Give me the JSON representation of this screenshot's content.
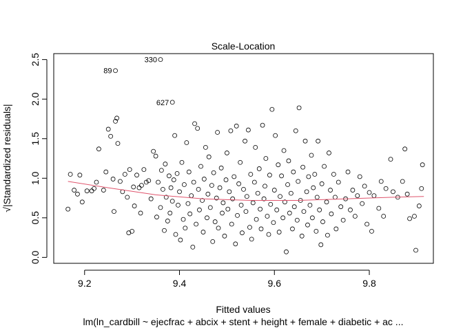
{
  "chart_data": {
    "type": "scatter",
    "title": "Scale-Location",
    "xlabel": "Fitted values",
    "ylabel": "√|Standardized residuals|",
    "subtitle": "lm(ln_cardbill ~ ejecfrac + abcix + stent + height + female + diabetic + ac ...",
    "xlim": [
      9.135,
      9.935
    ],
    "ylim": [
      -0.075,
      2.575
    ],
    "x_ticks": [
      9.2,
      9.4,
      9.6,
      9.8
    ],
    "y_ticks": [
      0.0,
      0.5,
      1.0,
      1.5,
      2.0,
      2.5
    ],
    "x_tick_labels": [
      "9.2",
      "9.4",
      "9.6",
      "9.8"
    ],
    "y_tick_labels": [
      "0.0",
      "0.5",
      "1.0",
      "1.5",
      "2.0",
      "2.5"
    ],
    "grid": false,
    "smoother_color": "#DF536B",
    "labeled_points": [
      {
        "label": "330",
        "x": 9.36,
        "y": 2.5
      },
      {
        "label": "89",
        "x": 9.265,
        "y": 2.36
      },
      {
        "label": "627",
        "x": 9.385,
        "y": 1.96
      }
    ],
    "smoother": {
      "x": [
        9.165,
        9.25,
        9.35,
        9.45,
        9.55,
        9.65,
        9.75,
        9.85,
        9.915
      ],
      "y": [
        0.96,
        0.88,
        0.79,
        0.74,
        0.72,
        0.72,
        0.74,
        0.76,
        0.77
      ]
    },
    "points": [
      [
        9.165,
        0.61
      ],
      [
        9.17,
        1.05
      ],
      [
        9.178,
        0.85
      ],
      [
        9.185,
        0.8
      ],
      [
        9.19,
        1.04
      ],
      [
        9.195,
        0.7
      ],
      [
        9.205,
        0.84
      ],
      [
        9.215,
        0.84
      ],
      [
        9.22,
        0.87
      ],
      [
        9.225,
        0.95
      ],
      [
        9.23,
        1.37
      ],
      [
        9.24,
        0.85
      ],
      [
        9.245,
        1.08
      ],
      [
        9.25,
        1.62
      ],
      [
        9.255,
        1.53
      ],
      [
        9.26,
        0.99
      ],
      [
        9.262,
        0.58
      ],
      [
        9.265,
        1.72
      ],
      [
        9.268,
        1.76
      ],
      [
        9.27,
        1.44
      ],
      [
        9.275,
        0.96
      ],
      [
        9.28,
        0.83
      ],
      [
        9.285,
        1.05
      ],
      [
        9.29,
        0.76
      ],
      [
        9.293,
        0.31
      ],
      [
        9.295,
        1.11
      ],
      [
        9.3,
        0.33
      ],
      [
        9.303,
        0.89
      ],
      [
        9.305,
        0.65
      ],
      [
        9.31,
        1.04
      ],
      [
        9.315,
        0.88
      ],
      [
        9.318,
        0.56
      ],
      [
        9.32,
        0.91
      ],
      [
        9.325,
        1.11
      ],
      [
        9.33,
        0.95
      ],
      [
        9.335,
        0.97
      ],
      [
        9.34,
        0.74
      ],
      [
        9.345,
        1.34
      ],
      [
        9.35,
        1.28
      ],
      [
        9.352,
        0.51
      ],
      [
        9.355,
        0.95
      ],
      [
        9.36,
        0.63
      ],
      [
        9.362,
        1.1
      ],
      [
        9.365,
        0.86
      ],
      [
        9.368,
        0.34
      ],
      [
        9.37,
        1.18
      ],
      [
        9.372,
        0.76
      ],
      [
        9.375,
        0.46
      ],
      [
        9.378,
        1.03
      ],
      [
        9.38,
        0.56
      ],
      [
        9.382,
        0.88
      ],
      [
        9.385,
        0.71
      ],
      [
        9.388,
        0.98
      ],
      [
        9.39,
        1.54
      ],
      [
        9.392,
        0.29
      ],
      [
        9.395,
        1.06
      ],
      [
        9.397,
        0.66
      ],
      [
        9.4,
        0.83
      ],
      [
        9.402,
        0.22
      ],
      [
        9.405,
        1.2
      ],
      [
        9.408,
        0.48
      ],
      [
        9.41,
        0.92
      ],
      [
        9.412,
        0.37
      ],
      [
        9.415,
        1.45
      ],
      [
        9.418,
        0.68
      ],
      [
        9.42,
        1.08
      ],
      [
        9.422,
        0.55
      ],
      [
        9.425,
        0.78
      ],
      [
        9.428,
        0.13
      ],
      [
        9.43,
        0.95
      ],
      [
        9.432,
        1.69
      ],
      [
        9.435,
        0.42
      ],
      [
        9.438,
        1.63
      ],
      [
        9.44,
        0.86
      ],
      [
        9.442,
        0.6
      ],
      [
        9.445,
        1.15
      ],
      [
        9.448,
        0.72
      ],
      [
        9.45,
        0.32
      ],
      [
        9.452,
        0.99
      ],
      [
        9.455,
        1.39
      ],
      [
        9.458,
        0.5
      ],
      [
        9.46,
        0.8
      ],
      [
        9.462,
        1.27
      ],
      [
        9.465,
        0.63
      ],
      [
        9.468,
        0.91
      ],
      [
        9.47,
        0.2
      ],
      [
        9.472,
        1.07
      ],
      [
        9.475,
        0.45
      ],
      [
        9.478,
        0.75
      ],
      [
        9.48,
        1.58
      ],
      [
        9.482,
        0.37
      ],
      [
        9.485,
        0.88
      ],
      [
        9.488,
        1.13
      ],
      [
        9.49,
        0.56
      ],
      [
        9.492,
        0.69
      ],
      [
        9.495,
        0.27
      ],
      [
        9.498,
        0.98
      ],
      [
        9.5,
        1.32
      ],
      [
        9.502,
        0.61
      ],
      [
        9.505,
        0.83
      ],
      [
        9.508,
        1.6
      ],
      [
        9.51,
        0.42
      ],
      [
        9.512,
        0.74
      ],
      [
        9.515,
        1.02
      ],
      [
        9.518,
        0.17
      ],
      [
        9.52,
        1.66
      ],
      [
        9.522,
        0.53
      ],
      [
        9.525,
        0.93
      ],
      [
        9.528,
        1.2
      ],
      [
        9.53,
        0.66
      ],
      [
        9.532,
        0.31
      ],
      [
        9.535,
        0.86
      ],
      [
        9.538,
        1.47
      ],
      [
        9.54,
        0.58
      ],
      [
        9.542,
        0.77
      ],
      [
        9.545,
        1.61
      ],
      [
        9.548,
        0.38
      ],
      [
        9.55,
        1.05
      ],
      [
        9.552,
        0.23
      ],
      [
        9.555,
        0.69
      ],
      [
        9.558,
        0.95
      ],
      [
        9.56,
        1.39
      ],
      [
        9.562,
        0.48
      ],
      [
        9.565,
        0.81
      ],
      [
        9.568,
        1.12
      ],
      [
        9.57,
        0.61
      ],
      [
        9.572,
        0.36
      ],
      [
        9.575,
        1.67
      ],
      [
        9.578,
        0.74
      ],
      [
        9.58,
        0.9
      ],
      [
        9.582,
        1.25
      ],
      [
        9.585,
        0.52
      ],
      [
        9.588,
        0.29
      ],
      [
        9.59,
        1.04
      ],
      [
        9.592,
        0.67
      ],
      [
        9.595,
        1.87
      ],
      [
        9.598,
        0.44
      ],
      [
        9.6,
        0.85
      ],
      [
        9.602,
        1.54
      ],
      [
        9.605,
        0.6
      ],
      [
        9.608,
        1.17
      ],
      [
        9.61,
        0.32
      ],
      [
        9.612,
        0.77
      ],
      [
        9.615,
        1.03
      ],
      [
        9.618,
        0.5
      ],
      [
        9.62,
        1.35
      ],
      [
        9.622,
        0.7
      ],
      [
        9.625,
        0.07
      ],
      [
        9.628,
        0.92
      ],
      [
        9.63,
        1.22
      ],
      [
        9.632,
        0.56
      ],
      [
        9.635,
        0.81
      ],
      [
        9.638,
        0.36
      ],
      [
        9.64,
        1.08
      ],
      [
        9.642,
        0.64
      ],
      [
        9.645,
        1.6
      ],
      [
        9.648,
        0.47
      ],
      [
        9.65,
        0.96
      ],
      [
        9.652,
        1.89
      ],
      [
        9.655,
        0.72
      ],
      [
        9.658,
        0.27
      ],
      [
        9.66,
        1.14
      ],
      [
        9.662,
        0.58
      ],
      [
        9.665,
        1.47
      ],
      [
        9.668,
        0.83
      ],
      [
        9.67,
        0.41
      ],
      [
        9.672,
        1.02
      ],
      [
        9.675,
        0.66
      ],
      [
        9.678,
        1.29
      ],
      [
        9.68,
        0.5
      ],
      [
        9.682,
        0.88
      ],
      [
        9.685,
        1.05
      ],
      [
        9.688,
        0.33
      ],
      [
        9.69,
        0.76
      ],
      [
        9.692,
        1.47
      ],
      [
        9.695,
        0.6
      ],
      [
        9.698,
        0.16
      ],
      [
        9.7,
        0.93
      ],
      [
        9.702,
        0.45
      ],
      [
        9.705,
        1.15
      ],
      [
        9.71,
        0.7
      ],
      [
        9.712,
        0.28
      ],
      [
        9.715,
        1.32
      ],
      [
        9.718,
        0.85
      ],
      [
        9.72,
        0.55
      ],
      [
        9.725,
        1.05
      ],
      [
        9.728,
        0.76
      ],
      [
        9.73,
        0.36
      ],
      [
        9.735,
        0.95
      ],
      [
        9.74,
        0.64
      ],
      [
        9.745,
        0.47
      ],
      [
        9.75,
        0.74
      ],
      [
        9.755,
        1.08
      ],
      [
        9.76,
        0.6
      ],
      [
        9.765,
        0.85
      ],
      [
        9.77,
        0.52
      ],
      [
        9.775,
        0.78
      ],
      [
        9.78,
        1.02
      ],
      [
        9.785,
        0.68
      ],
      [
        9.79,
        0.9
      ],
      [
        9.795,
        0.42
      ],
      [
        9.8,
        0.82
      ],
      [
        9.805,
        0.33
      ],
      [
        9.81,
        0.78
      ],
      [
        9.82,
        0.62
      ],
      [
        9.825,
        0.96
      ],
      [
        9.83,
        0.52
      ],
      [
        9.835,
        0.87
      ],
      [
        9.845,
        1.24
      ],
      [
        9.85,
        0.83
      ],
      [
        9.86,
        0.76
      ],
      [
        9.87,
        0.96
      ],
      [
        9.875,
        1.37
      ],
      [
        9.88,
        0.8
      ],
      [
        9.885,
        0.49
      ],
      [
        9.898,
        0.09
      ],
      [
        9.91,
        0.87
      ],
      [
        9.912,
        1.17
      ],
      [
        9.905,
        0.65
      ],
      [
        9.895,
        0.52
      ]
    ]
  }
}
